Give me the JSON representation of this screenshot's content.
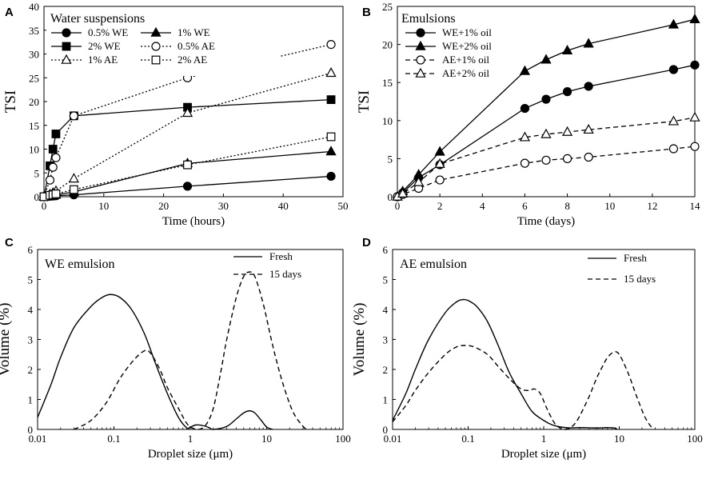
{
  "chart_data": [
    {
      "panel": "A",
      "type": "line",
      "legend_title": "Water suspensions",
      "xlabel": "Time (hours)",
      "ylabel": "TSI",
      "xlim": [
        0,
        50
      ],
      "ylim": [
        0,
        40
      ],
      "xticks": [
        "0",
        "10",
        "20",
        "30",
        "40",
        "50"
      ],
      "yticks": [
        "0",
        "5",
        "10",
        "15",
        "20",
        "25",
        "30",
        "35",
        "40"
      ],
      "x": [
        0,
        1,
        1.5,
        2,
        5,
        24,
        48
      ],
      "series": [
        {
          "name": "0.5% WE",
          "marker": "circle",
          "fill": "black",
          "dash": "solid",
          "values": [
            0,
            0.1,
            0.15,
            0.2,
            0.4,
            2.2,
            4.3
          ]
        },
        {
          "name": "1% WE",
          "marker": "triangle",
          "fill": "black",
          "dash": "solid",
          "values": [
            0,
            0.2,
            0.3,
            0.4,
            1.0,
            7.0,
            9.5
          ]
        },
        {
          "name": "2% WE",
          "marker": "square",
          "fill": "black",
          "dash": "solid",
          "values": [
            0,
            6.5,
            10,
            13.2,
            17,
            18.8,
            20.4
          ]
        },
        {
          "name": "0.5% AE",
          "marker": "circle",
          "fill": "white",
          "dash": "dotted",
          "values": [
            0,
            3.5,
            6.2,
            8.2,
            17,
            25,
            32
          ]
        },
        {
          "name": "1% AE",
          "marker": "triangle",
          "fill": "white",
          "dash": "dotted",
          "values": [
            0,
            0.5,
            0.8,
            1.2,
            3.8,
            17.6,
            26
          ]
        },
        {
          "name": "2% AE",
          "marker": "square",
          "fill": "white",
          "dash": "dotted",
          "values": [
            0,
            0.3,
            0.4,
            0.6,
            1.5,
            6.7,
            12.6
          ]
        }
      ]
    },
    {
      "panel": "B",
      "type": "line",
      "legend_title": "Emulsions",
      "xlabel": "Time (days)",
      "ylabel": "TSI",
      "xlim": [
        0,
        14
      ],
      "ylim": [
        0,
        25
      ],
      "xticks": [
        "0",
        "2",
        "4",
        "6",
        "8",
        "10",
        "12",
        "14"
      ],
      "yticks": [
        "0",
        "5",
        "10",
        "15",
        "20",
        "25"
      ],
      "x": [
        0,
        0.25,
        1,
        2,
        6,
        7,
        8,
        9,
        13,
        14
      ],
      "series": [
        {
          "name": "WE+1% oil",
          "marker": "circle",
          "fill": "black",
          "dash": "solid",
          "values": [
            0,
            0.5,
            2.5,
            4.2,
            11.6,
            12.8,
            13.8,
            14.5,
            16.7,
            17.3
          ]
        },
        {
          "name": "WE+2% oil",
          "marker": "triangle",
          "fill": "black",
          "dash": "solid",
          "values": [
            0,
            0.7,
            2.9,
            5.9,
            16.5,
            18,
            19.2,
            20.1,
            22.6,
            23.3
          ]
        },
        {
          "name": "AE+1% oil",
          "marker": "circle",
          "fill": "white",
          "dash": "dashed",
          "values": [
            0,
            0.3,
            1.1,
            2.2,
            4.4,
            4.8,
            5.0,
            5.2,
            6.3,
            6.6
          ]
        },
        {
          "name": "AE+2% oil",
          "marker": "triangle",
          "fill": "white",
          "dash": "dashed",
          "values": [
            0,
            0.4,
            1.9,
            4.3,
            7.8,
            8.2,
            8.5,
            8.8,
            9.9,
            10.4
          ]
        }
      ]
    },
    {
      "panel": "C",
      "type": "line",
      "legend_title": "WE emulsion",
      "xlabel": "Droplet size (μm)",
      "ylabel": "Volume (%)",
      "xscale": "log",
      "xlim": [
        0.01,
        100
      ],
      "ylim": [
        0,
        6
      ],
      "xticks": [
        "0.01",
        "0.1",
        "1",
        "10",
        "100"
      ],
      "yticks": [
        "0",
        "1",
        "2",
        "3",
        "4",
        "5",
        "6"
      ],
      "series": [
        {
          "name": "Fresh",
          "dash": "solid",
          "x": [
            0.01,
            0.015,
            0.02,
            0.03,
            0.05,
            0.07,
            0.09,
            0.12,
            0.17,
            0.25,
            0.35,
            0.5,
            0.7,
            0.9,
            1.0,
            1.2,
            1.5,
            1.8,
            2.0,
            3.0,
            4.0,
            5.0,
            6.0,
            7.0,
            8.5,
            10,
            12
          ],
          "values": [
            0.4,
            1.5,
            2.4,
            3.4,
            4.1,
            4.4,
            4.5,
            4.4,
            4.0,
            3.2,
            2.2,
            1.2,
            0.4,
            0.05,
            0.08,
            0.15,
            0.12,
            0.05,
            0,
            0.1,
            0.35,
            0.55,
            0.62,
            0.55,
            0.3,
            0.08,
            0
          ]
        },
        {
          "name": "15 days",
          "dash": "dashed",
          "x": [
            0.03,
            0.05,
            0.08,
            0.12,
            0.18,
            0.25,
            0.3,
            0.4,
            0.5,
            0.7,
            0.9,
            1.1,
            1.3,
            1.6,
            2.0,
            2.5,
            3.0,
            4.0,
            5.0,
            6.0,
            7.0,
            9.0,
            12,
            16,
            22,
            30,
            35
          ],
          "values": [
            0,
            0.3,
            0.9,
            1.7,
            2.3,
            2.62,
            2.55,
            2.0,
            1.4,
            0.7,
            0.2,
            0.03,
            0,
            0.15,
            0.7,
            1.9,
            3.0,
            4.4,
            5.1,
            5.25,
            5.1,
            4.2,
            2.8,
            1.6,
            0.6,
            0.1,
            0
          ]
        }
      ]
    },
    {
      "panel": "D",
      "type": "line",
      "legend_title": "AE emulsion",
      "xlabel": "Droplet size (μm)",
      "ylabel": "Volume (%)",
      "xscale": "log",
      "xlim": [
        0.01,
        100
      ],
      "ylim": [
        0,
        6
      ],
      "xticks": [
        "0.01",
        "0.1",
        "1",
        "10",
        "100"
      ],
      "yticks": [
        "0",
        "1",
        "2",
        "3",
        "4",
        "5",
        "6"
      ],
      "series": [
        {
          "name": "Fresh",
          "dash": "solid",
          "x": [
            0.01,
            0.015,
            0.02,
            0.03,
            0.05,
            0.07,
            0.085,
            0.1,
            0.13,
            0.18,
            0.25,
            0.35,
            0.5,
            0.7,
            1.0,
            1.3,
            1.7,
            2.2,
            3.0,
            5.0,
            7.0,
            8.5,
            9.5
          ],
          "values": [
            0.3,
            1.2,
            2.0,
            3.0,
            3.9,
            4.25,
            4.33,
            4.3,
            4.1,
            3.6,
            2.8,
            1.9,
            1.2,
            0.6,
            0.3,
            0.15,
            0.08,
            0.05,
            0.06,
            0.05,
            0.06,
            0.05,
            0
          ]
        },
        {
          "name": "15 days",
          "dash": "dashed",
          "x": [
            0.01,
            0.015,
            0.02,
            0.03,
            0.05,
            0.07,
            0.09,
            0.12,
            0.18,
            0.25,
            0.35,
            0.5,
            0.65,
            0.75,
            0.9,
            1.1,
            1.4,
            1.7,
            2.0,
            2.5,
            3.0,
            4.0,
            5.0,
            6.0,
            7.0,
            8.5,
            10,
            13,
            17,
            22,
            28
          ],
          "values": [
            0.25,
            0.8,
            1.3,
            1.9,
            2.5,
            2.75,
            2.8,
            2.75,
            2.5,
            2.1,
            1.7,
            1.35,
            1.3,
            1.35,
            1.2,
            0.7,
            0.2,
            0.03,
            0,
            0.15,
            0.45,
            1.1,
            1.7,
            2.1,
            2.4,
            2.58,
            2.5,
            1.9,
            1.1,
            0.4,
            0
          ]
        }
      ]
    }
  ]
}
